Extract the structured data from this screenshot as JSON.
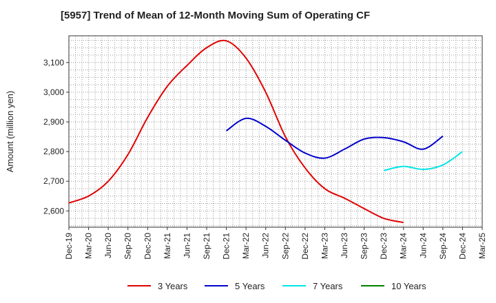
{
  "chart_data": {
    "type": "line",
    "title": "[5957]  Trend of Mean of 12-Month Moving Sum of Operating CF",
    "xlabel": "",
    "ylabel": "Amount (million yen)",
    "ylim": [
      2545,
      3190
    ],
    "yticks": [
      2600,
      2700,
      2800,
      2900,
      3000,
      3100
    ],
    "ytick_labels": [
      "2,600",
      "2,700",
      "2,800",
      "2,900",
      "3,000",
      "3,100"
    ],
    "x_categories": [
      "Dec-19",
      "Mar-20",
      "Jun-20",
      "Sep-20",
      "Dec-20",
      "Mar-21",
      "Jun-21",
      "Sep-21",
      "Dec-21",
      "Mar-22",
      "Jun-22",
      "Sep-22",
      "Dec-22",
      "Mar-23",
      "Jun-23",
      "Sep-23",
      "Dec-23",
      "Mar-24",
      "Jun-24",
      "Sep-24",
      "Dec-24",
      "Mar-25"
    ],
    "grid": true,
    "legend_position": "bottom",
    "series": [
      {
        "name": "3 Years",
        "color": "#e00000",
        "start_index": 0,
        "values": [
          2627,
          2650,
          2700,
          2790,
          2915,
          3020,
          3090,
          3150,
          3173,
          3115,
          3000,
          2850,
          2745,
          2675,
          2643,
          2608,
          2575,
          2561
        ]
      },
      {
        "name": "5 Years",
        "color": "#0000cc",
        "start_index": 8,
        "values": [
          2870,
          2912,
          2885,
          2838,
          2795,
          2778,
          2808,
          2842,
          2847,
          2833,
          2808,
          2852
        ]
      },
      {
        "name": "7 Years",
        "color": "#00e5e5",
        "start_index": 16,
        "values": [
          2736,
          2750,
          2740,
          2755,
          2800
        ]
      },
      {
        "name": "10 Years",
        "color": "#008000",
        "start_index": 20,
        "values": []
      }
    ]
  }
}
